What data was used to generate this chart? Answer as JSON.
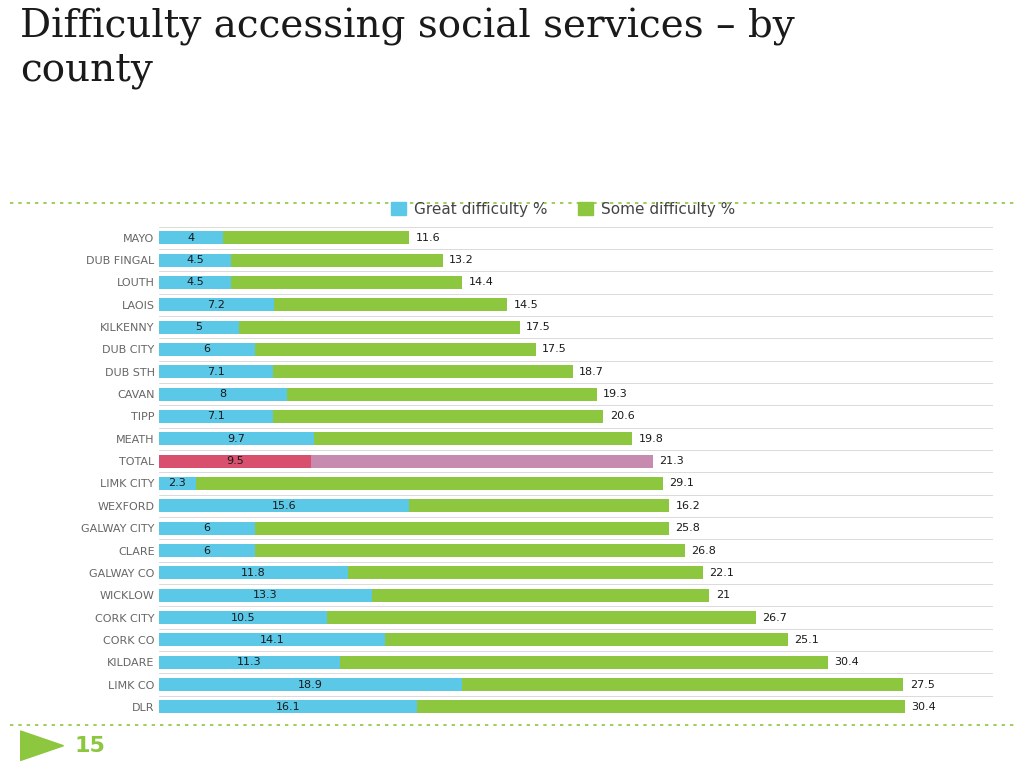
{
  "title": "Difficulty accessing social services – by\ncounty",
  "legend_labels": [
    "Great difficulty %",
    "Some difficulty %"
  ],
  "legend_colors": [
    "#5BC8E8",
    "#8DC63F"
  ],
  "categories": [
    "MAYO",
    "DUB FINGAL",
    "LOUTH",
    "LAOIS",
    "KILKENNY",
    "DUB CITY",
    "DUB STH",
    "CAVAN",
    "TIPP",
    "MEATH",
    "TOTAL",
    "LIMK CITY",
    "WEXFORD",
    "GALWAY CITY",
    "CLARE",
    "GALWAY CO",
    "WICKLOW",
    "CORK CITY",
    "CORK CO",
    "KILDARE",
    "LIMK CO",
    "DLR"
  ],
  "great_difficulty": [
    4,
    4.5,
    4.5,
    7.2,
    5,
    6,
    7.1,
    8,
    7.1,
    9.7,
    9.5,
    2.3,
    15.6,
    6,
    6,
    11.8,
    13.3,
    10.5,
    14.1,
    11.3,
    18.9,
    16.1
  ],
  "some_difficulty": [
    11.6,
    13.2,
    14.4,
    14.5,
    17.5,
    17.5,
    18.7,
    19.3,
    20.6,
    19.8,
    21.3,
    29.1,
    16.2,
    25.8,
    26.8,
    22.1,
    21,
    26.7,
    25.1,
    30.4,
    27.5,
    30.4
  ],
  "great_colors": [
    "#5BC8E8",
    "#5BC8E8",
    "#5BC8E8",
    "#5BC8E8",
    "#5BC8E8",
    "#5BC8E8",
    "#5BC8E8",
    "#5BC8E8",
    "#5BC8E8",
    "#5BC8E8",
    "#D94F6E",
    "#5BC8E8",
    "#5BC8E8",
    "#5BC8E8",
    "#5BC8E8",
    "#5BC8E8",
    "#5BC8E8",
    "#5BC8E8",
    "#5BC8E8",
    "#5BC8E8",
    "#5BC8E8",
    "#5BC8E8"
  ],
  "some_colors": [
    "#8DC63F",
    "#8DC63F",
    "#8DC63F",
    "#8DC63F",
    "#8DC63F",
    "#8DC63F",
    "#8DC63F",
    "#8DC63F",
    "#8DC63F",
    "#8DC63F",
    "#C78BB0",
    "#8DC63F",
    "#8DC63F",
    "#8DC63F",
    "#8DC63F",
    "#8DC63F",
    "#8DC63F",
    "#8DC63F",
    "#8DC63F",
    "#8DC63F",
    "#8DC63F",
    "#8DC63F"
  ],
  "bg_color": "#FFFFFF",
  "title_color": "#1a1a1a",
  "label_color": "#666666",
  "bar_height": 0.58,
  "footnote": "15",
  "dashed_line_color": "#8DC63F",
  "title_fontsize": 28,
  "label_fontsize": 8,
  "value_fontsize": 8,
  "footer_color": "#5BC8E8",
  "arrow_color": "#8DC63F",
  "xlim": 52
}
